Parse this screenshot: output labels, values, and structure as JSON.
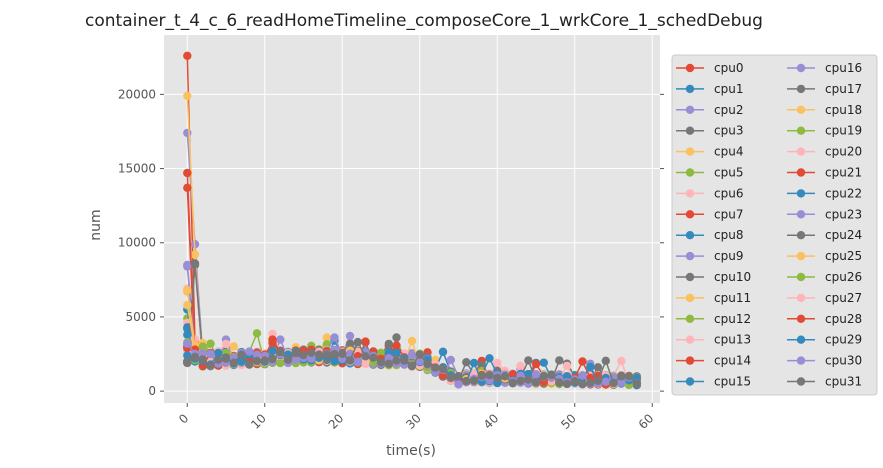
{
  "chart_data": {
    "type": "line",
    "title": "container_t_4_c_6_readHomeTimeline_composeCore_1_wrkCore_1_schedDebug",
    "xlabel": "time(s)",
    "ylabel": "num",
    "xlim": [
      -3,
      61
    ],
    "ylim": [
      -800,
      24000
    ],
    "xticks": [
      0,
      10,
      20,
      30,
      40,
      50,
      60
    ],
    "yticks": [
      0,
      5000,
      10000,
      15000,
      20000
    ],
    "grid": true,
    "legend_position": "right",
    "colors": [
      "#E24A33",
      "#348ABD",
      "#988ED5",
      "#777777",
      "#FBC15E",
      "#8EBA42",
      "#FFB5B8"
    ],
    "initial_values": [
      22600,
      4200,
      17400,
      1900,
      19900,
      4900,
      6900,
      13700,
      5500,
      8500,
      2000,
      6700,
      3000,
      4600,
      14700,
      4300,
      8400,
      1900,
      6800,
      3100,
      2700,
      2900,
      3800,
      3000,
      2000,
      5800,
      3300,
      2800,
      2900,
      2400,
      3200,
      2000
    ],
    "second_values": [
      3300,
      2200,
      9900,
      8500,
      9200,
      2600,
      3500,
      2300,
      2000,
      3000,
      2800,
      3100,
      2500,
      2700,
      2400,
      2100,
      2600,
      8600,
      3000,
      2200,
      2900,
      2500,
      2300,
      2700,
      2400,
      2900,
      2100,
      2600,
      2800,
      2200,
      2500,
      2300
    ],
    "series_names": [
      "cpu0",
      "cpu1",
      "cpu2",
      "cpu3",
      "cpu4",
      "cpu5",
      "cpu6",
      "cpu7",
      "cpu8",
      "cpu9",
      "cpu10",
      "cpu11",
      "cpu12",
      "cpu13",
      "cpu14",
      "cpu15",
      "cpu16",
      "cpu17",
      "cpu18",
      "cpu19",
      "cpu20",
      "cpu21",
      "cpu22",
      "cpu23",
      "cpu24",
      "cpu25",
      "cpu26",
      "cpu27",
      "cpu28",
      "cpu29",
      "cpu30",
      "cpu31"
    ]
  }
}
